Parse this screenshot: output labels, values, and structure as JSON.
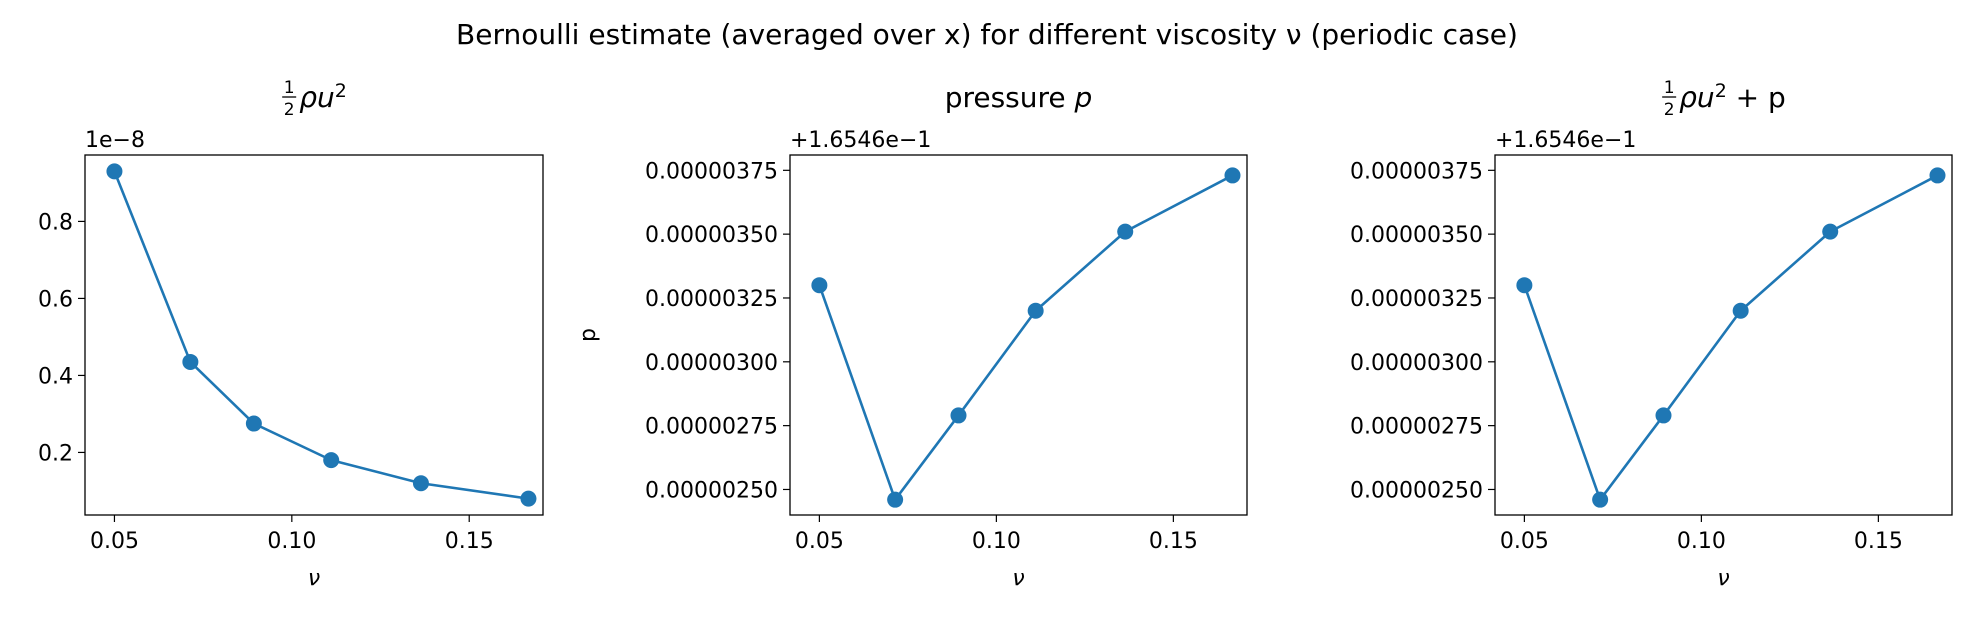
{
  "figure": {
    "suptitle": "Bernoulli estimate (averaged over x) for different viscosity ν (periodic case)"
  },
  "chart_data": [
    {
      "type": "line",
      "title": "½ρu²",
      "title_main": "ρu",
      "title_sup": "2",
      "title_suffix": "",
      "xlabel": "ν",
      "ylabel": "",
      "y_offset_label": "1e−8",
      "x": [
        0.05,
        0.0714,
        0.0893,
        0.1111,
        0.1364,
        0.1667
      ],
      "y": [
        0.93,
        0.435,
        0.275,
        0.18,
        0.12,
        0.08
      ],
      "xlim": [
        0.0417,
        0.1708
      ],
      "ylim": [
        0.0375,
        0.9725
      ],
      "xticks": [
        0.05,
        0.1,
        0.15
      ],
      "xtick_labels": [
        "0.05",
        "0.10",
        "0.15"
      ],
      "yticks": [
        0.2,
        0.4,
        0.6,
        0.8
      ],
      "ytick_labels": [
        "0.2",
        "0.4",
        "0.6",
        "0.8"
      ],
      "color": "#1f77b4"
    },
    {
      "type": "line",
      "title": "pressure p",
      "title_main": "pressure ",
      "title_italic": "p",
      "xlabel": "ν",
      "ylabel": "p",
      "y_offset_label": "+1.6546e−1",
      "x": [
        0.05,
        0.0714,
        0.0893,
        0.1111,
        0.1364,
        0.1667
      ],
      "y": [
        3.3e-06,
        2.46e-06,
        2.79e-06,
        3.2e-06,
        3.51e-06,
        3.73e-06
      ],
      "xlim": [
        0.0417,
        0.1708
      ],
      "ylim": [
        2.4e-06,
        3.81e-06
      ],
      "xticks": [
        0.05,
        0.1,
        0.15
      ],
      "xtick_labels": [
        "0.05",
        "0.10",
        "0.15"
      ],
      "yticks": [
        2.5e-06,
        2.75e-06,
        3e-06,
        3.25e-06,
        3.5e-06,
        3.75e-06
      ],
      "ytick_labels": [
        "0.00000250",
        "0.00000275",
        "0.00000300",
        "0.00000325",
        "0.00000350",
        "0.00000375"
      ],
      "color": "#1f77b4"
    },
    {
      "type": "line",
      "title": "½ρu² + p",
      "title_main": "ρu",
      "title_sup": "2",
      "title_suffix": " + p",
      "xlabel": "ν",
      "ylabel": "",
      "y_offset_label": "+1.6546e−1",
      "x": [
        0.05,
        0.0714,
        0.0893,
        0.1111,
        0.1364,
        0.1667
      ],
      "y": [
        3.3e-06,
        2.46e-06,
        2.79e-06,
        3.2e-06,
        3.51e-06,
        3.73e-06
      ],
      "xlim": [
        0.0417,
        0.1708
      ],
      "ylim": [
        2.4e-06,
        3.81e-06
      ],
      "xticks": [
        0.05,
        0.1,
        0.15
      ],
      "xtick_labels": [
        "0.05",
        "0.10",
        "0.15"
      ],
      "yticks": [
        2.5e-06,
        2.75e-06,
        3e-06,
        3.25e-06,
        3.5e-06,
        3.75e-06
      ],
      "ytick_labels": [
        "0.00000250",
        "0.00000275",
        "0.00000300",
        "0.00000325",
        "0.00000350",
        "0.00000375"
      ],
      "color": "#1f77b4"
    }
  ]
}
